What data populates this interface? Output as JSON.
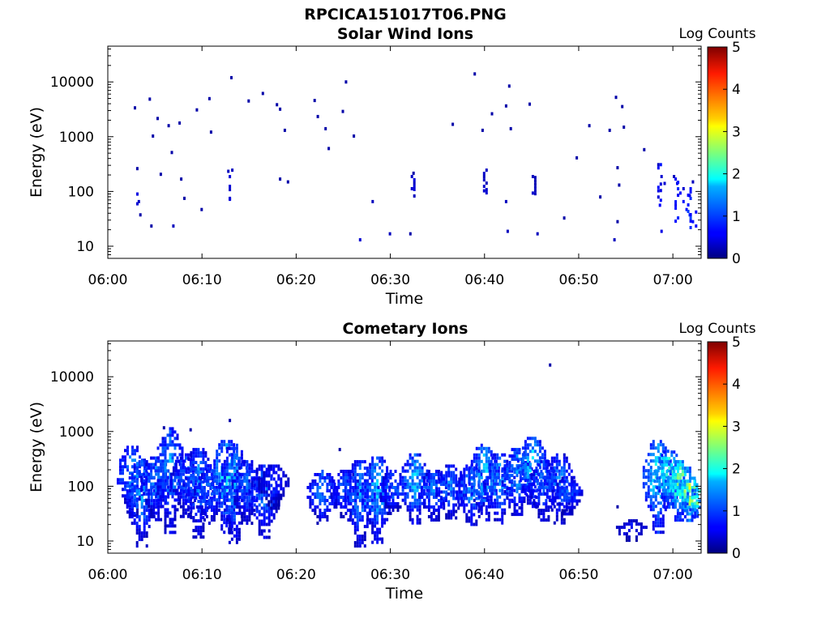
{
  "figure_title": "RPCICA151017T06.PNG",
  "colorbar": {
    "label": "Log Counts",
    "ticks": [
      "0",
      "1",
      "2",
      "3",
      "4",
      "5"
    ],
    "range": [
      0,
      5
    ],
    "colormap": "jet"
  },
  "chart_data": [
    {
      "type": "heatmap",
      "title": "Solar Wind Ions",
      "xlabel": "Time",
      "ylabel": "Energy (eV)",
      "y_scale": "log",
      "ylim": [
        6,
        45000
      ],
      "xlim": [
        "06:00",
        "07:03"
      ],
      "xticks": [
        "06:00",
        "06:10",
        "06:20",
        "06:30",
        "06:40",
        "06:50",
        "07:00"
      ],
      "yticks": [
        "10",
        "100",
        "1000",
        "10000"
      ],
      "points": [
        [
          "06:02:45",
          3600,
          0.2
        ],
        [
          "06:03:00",
          280,
          0.2
        ],
        [
          "06:03:10",
          70,
          0.3
        ],
        [
          "06:03:20",
          40,
          0.2
        ],
        [
          "06:04:20",
          5200,
          0.2
        ],
        [
          "06:04:40",
          1100,
          0.2
        ],
        [
          "06:04:30",
          25,
          0.2
        ],
        [
          "06:05:10",
          2300,
          0.2
        ],
        [
          "06:05:30",
          220,
          0.2
        ],
        [
          "06:06:20",
          1700,
          0.2
        ],
        [
          "06:06:40",
          550,
          0.2
        ],
        [
          "06:06:50",
          25,
          0.3
        ],
        [
          "06:07:30",
          1900,
          0.2
        ],
        [
          "06:07:40",
          180,
          0.2
        ],
        [
          "06:08:00",
          80,
          0.2
        ],
        [
          "06:09:20",
          3300,
          0.2
        ],
        [
          "06:09:50",
          50,
          0.2
        ],
        [
          "06:10:40",
          5300,
          0.2
        ],
        [
          "06:10:50",
          1300,
          0.2
        ],
        [
          "06:13:00",
          12800,
          0.2
        ],
        [
          "06:12:40",
          250,
          0.3
        ],
        [
          "06:12:50",
          80,
          0.4
        ],
        [
          "06:14:50",
          4800,
          0.2
        ],
        [
          "06:16:20",
          6600,
          0.2
        ],
        [
          "06:17:50",
          4100,
          0.2
        ],
        [
          "06:18:10",
          3400,
          0.2
        ],
        [
          "06:18:40",
          1400,
          0.2
        ],
        [
          "06:18:10",
          180,
          0.2
        ],
        [
          "06:19:00",
          160,
          0.2
        ],
        [
          "06:21:50",
          4900,
          0.2
        ],
        [
          "06:22:10",
          2500,
          0.2
        ],
        [
          "06:23:00",
          1500,
          0.2
        ],
        [
          "06:23:20",
          650,
          0.2
        ],
        [
          "06:25:10",
          10700,
          0.2
        ],
        [
          "06:24:50",
          3100,
          0.2
        ],
        [
          "06:26:00",
          1100,
          0.2
        ],
        [
          "06:26:40",
          14,
          0.4
        ],
        [
          "06:28:00",
          70,
          0.3
        ],
        [
          "06:29:50",
          18,
          0.3
        ],
        [
          "06:32:20",
          230,
          0.2
        ],
        [
          "06:32:10",
          120,
          0.4
        ],
        [
          "06:32:00",
          18,
          0.2
        ],
        [
          "06:36:30",
          1800,
          0.2
        ],
        [
          "06:38:50",
          15000,
          0.2
        ],
        [
          "06:39:40",
          1400,
          0.2
        ],
        [
          "06:39:50",
          200,
          0.3
        ],
        [
          "06:39:50",
          110,
          0.4
        ],
        [
          "06:40:40",
          2800,
          0.2
        ],
        [
          "06:42:10",
          3900,
          0.2
        ],
        [
          "06:42:30",
          9000,
          0.2
        ],
        [
          "06:42:40",
          1500,
          0.2
        ],
        [
          "06:42:10",
          70,
          0.3
        ],
        [
          "06:42:20",
          20,
          0.3
        ],
        [
          "06:44:40",
          4200,
          0.2
        ],
        [
          "06:45:00",
          200,
          0.3
        ],
        [
          "06:45:00",
          100,
          0.4
        ],
        [
          "06:45:30",
          18,
          0.3
        ],
        [
          "06:48:20",
          35,
          0.2
        ],
        [
          "06:49:40",
          440,
          0.2
        ],
        [
          "06:51:00",
          1700,
          0.2
        ],
        [
          "06:52:10",
          85,
          0.2
        ],
        [
          "06:53:10",
          1400,
          0.2
        ],
        [
          "06:53:50",
          5600,
          0.2
        ],
        [
          "06:54:30",
          3800,
          0.2
        ],
        [
          "06:54:40",
          1600,
          0.2
        ],
        [
          "06:54:00",
          290,
          0.2
        ],
        [
          "06:54:10",
          140,
          0.2
        ],
        [
          "06:54:00",
          30,
          0.2
        ],
        [
          "06:53:40",
          14,
          0.3
        ],
        [
          "06:56:50",
          620,
          0.2
        ],
        [
          "06:58:20",
          330,
          0.3
        ],
        [
          "06:58:40",
          200,
          0.4
        ],
        [
          "06:59:00",
          150,
          0.4
        ],
        [
          "06:58:20",
          110,
          0.5
        ],
        [
          "06:58:30",
          60,
          0.6
        ],
        [
          "06:58:40",
          20,
          0.5
        ],
        [
          "07:00:00",
          200,
          0.3
        ],
        [
          "07:00:20",
          150,
          0.5
        ],
        [
          "07:00:40",
          100,
          0.6
        ],
        [
          "07:01:00",
          70,
          0.7
        ],
        [
          "07:01:20",
          50,
          0.7
        ],
        [
          "07:01:40",
          40,
          0.8
        ],
        [
          "07:02:00",
          30,
          0.7
        ],
        [
          "07:02:20",
          25,
          0.6
        ],
        [
          "07:02:00",
          160,
          0.3
        ],
        [
          "07:01:40",
          90,
          0.5
        ],
        [
          "07:01:00",
          120,
          0.4
        ],
        [
          "07:02:20",
          45,
          0.6
        ]
      ],
      "columns": [
        [
          "06:02:45",
          55,
          110,
          0.4
        ],
        [
          "06:12:50",
          70,
          300,
          0.4
        ],
        [
          "06:32:10",
          80,
          200,
          0.4
        ],
        [
          "06:39:50",
          90,
          300,
          0.4
        ],
        [
          "06:45:00",
          90,
          220,
          0.3
        ],
        [
          "06:58:20",
          40,
          330,
          0.6
        ],
        [
          "07:00:10",
          28,
          180,
          0.7
        ],
        [
          "07:01:30",
          22,
          120,
          0.8
        ]
      ]
    },
    {
      "type": "heatmap",
      "title": "Cometary Ions",
      "xlabel": "Time",
      "ylabel": "Energy (eV)",
      "y_scale": "log",
      "ylim": [
        6,
        45000
      ],
      "xlim": [
        "06:00",
        "07:03"
      ],
      "xticks": [
        "06:00",
        "06:10",
        "06:20",
        "06:30",
        "06:40",
        "06:50",
        "07:00"
      ],
      "yticks": [
        "10",
        "100",
        "1000",
        "10000"
      ],
      "bursts": [
        [
          "06:02:30",
          30,
          550,
          1.0
        ],
        [
          "06:03:30",
          8,
          300,
          1.0
        ],
        [
          "06:05:00",
          25,
          350,
          0.9
        ],
        [
          "06:06:30",
          15,
          1200,
          1.0
        ],
        [
          "06:08:10",
          30,
          400,
          0.8
        ],
        [
          "06:09:30",
          12,
          500,
          0.9
        ],
        [
          "06:10:40",
          20,
          200,
          0.8
        ],
        [
          "06:12:30",
          15,
          700,
          1.3
        ],
        [
          "06:13:20",
          10,
          600,
          1.0
        ],
        [
          "06:14:40",
          20,
          300,
          0.8
        ],
        [
          "06:16:30",
          12,
          250,
          0.9
        ],
        [
          "06:17:30",
          40,
          250,
          0.6
        ],
        [
          "06:22:40",
          20,
          200,
          0.9
        ],
        [
          "06:25:10",
          25,
          200,
          0.8
        ],
        [
          "06:26:40",
          8,
          300,
          1.0
        ],
        [
          "06:28:30",
          10,
          350,
          1.1
        ],
        [
          "06:30:10",
          30,
          200,
          0.8
        ],
        [
          "06:32:30",
          20,
          400,
          1.1
        ],
        [
          "06:34:30",
          25,
          200,
          0.9
        ],
        [
          "06:36:20",
          25,
          250,
          0.9
        ],
        [
          "06:38:30",
          20,
          250,
          1.0
        ],
        [
          "06:39:50",
          25,
          600,
          1.2
        ],
        [
          "06:41:30",
          20,
          400,
          1.0
        ],
        [
          "06:43:20",
          30,
          500,
          1.0
        ],
        [
          "06:45:00",
          40,
          800,
          1.2
        ],
        [
          "06:46:10",
          25,
          300,
          0.9
        ],
        [
          "06:47:50",
          20,
          400,
          0.9
        ],
        [
          "06:48:40",
          30,
          150,
          0.8
        ],
        [
          "06:55:30",
          10,
          25,
          0.5
        ],
        [
          "06:58:20",
          15,
          700,
          1.4
        ],
        [
          "06:59:30",
          40,
          450,
          1.6
        ],
        [
          "07:00:40",
          25,
          300,
          1.8
        ],
        [
          "07:01:40",
          25,
          150,
          2.0
        ],
        [
          "07:02:30",
          30,
          90,
          1.7
        ]
      ],
      "points": [
        [
          "06:05:50",
          1250,
          0.2
        ],
        [
          "06:08:40",
          1150,
          0.2
        ],
        [
          "06:12:50",
          1700,
          0.2
        ],
        [
          "06:24:30",
          500,
          0.2
        ],
        [
          "06:46:50",
          17500,
          0.2
        ],
        [
          "06:54:00",
          45,
          0.2
        ]
      ]
    }
  ]
}
